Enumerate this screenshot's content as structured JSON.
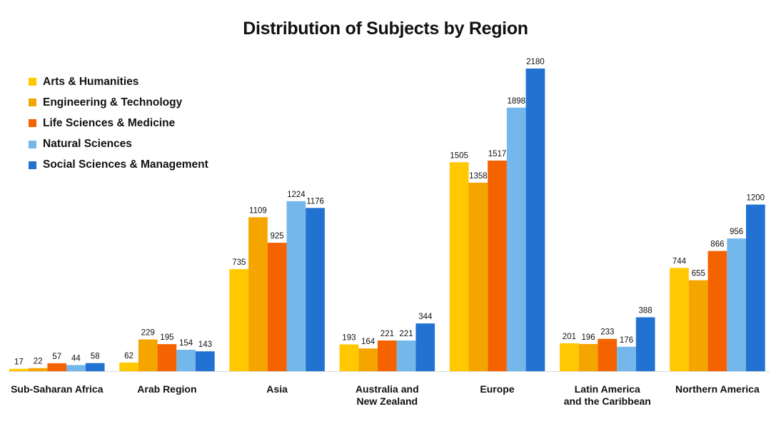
{
  "chart_data": {
    "type": "bar",
    "title": "Distribution of Subjects by Region",
    "xlabel": "",
    "ylabel": "",
    "ylim": [
      0,
      2200
    ],
    "grid": false,
    "legend_position": "top-left",
    "categories": [
      [
        "Sub-Saharan Africa"
      ],
      [
        "Arab Region"
      ],
      [
        "Asia"
      ],
      [
        "Australia and",
        "New Zealand"
      ],
      [
        "Europe"
      ],
      [
        "Latin America",
        "and the Caribbean"
      ],
      [
        "Northern America"
      ]
    ],
    "series": [
      {
        "name": "Arts & Humanities",
        "color": "#FFC800",
        "values": [
          17,
          62,
          735,
          193,
          1505,
          201,
          744
        ]
      },
      {
        "name": "Engineering & Technology",
        "color": "#F5A500",
        "values": [
          22,
          229,
          1109,
          164,
          1358,
          196,
          655
        ]
      },
      {
        "name": "Life Sciences & Medicine",
        "color": "#F56200",
        "values": [
          57,
          195,
          925,
          221,
          1517,
          233,
          866
        ]
      },
      {
        "name": "Natural Sciences",
        "color": "#74B7EB",
        "values": [
          44,
          154,
          1224,
          221,
          1898,
          176,
          956
        ]
      },
      {
        "name": "Social Sciences & Management",
        "color": "#2272D2",
        "values": [
          58,
          143,
          1176,
          344,
          2180,
          388,
          1200
        ]
      }
    ]
  }
}
